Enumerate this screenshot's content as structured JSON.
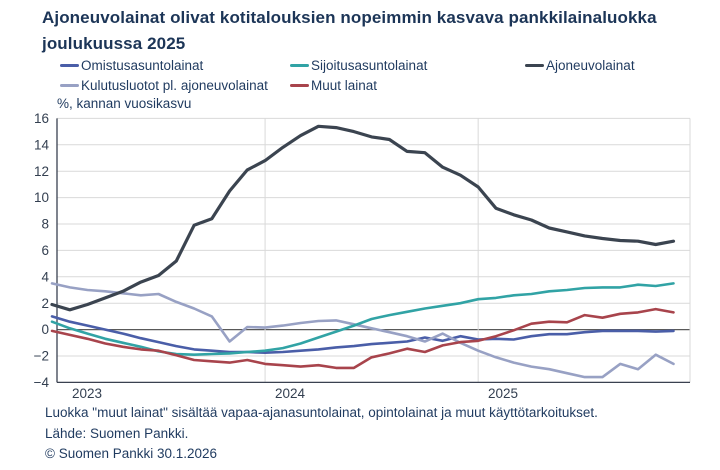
{
  "title": "Ajoneuvolainat olivat kotitalouksien nopeimmin kasvava pankkilainaluokka joulukuussa 2025",
  "footer": {
    "note": "Luokka \"muut lainat\" sisältää vapaa-ajanasuntolainat, opintolainat ja muut käyttötarkoitukset.",
    "source": "Lähde: Suomen Pankki.",
    "copyright": "© Suomen Pankki 30.1.2026"
  },
  "colors": {
    "text_navy": "#1f3a5f",
    "gridline": "#d9d9d9",
    "zero_line": "#595959",
    "axis_line": "#3a4150",
    "tick_label": "#333f50",
    "background": "#ffffff"
  },
  "chart_data": {
    "type": "line",
    "title": "Ajoneuvolainat olivat kotitalouksien nopeimmin kasvava pankkilainaluokka joulukuussa 2025",
    "ylabel": "%, kannan vuosikasvu",
    "xlabel": "",
    "ylim": [
      -4,
      16
    ],
    "y_tick_step": 2,
    "grid": true,
    "legend_position": "top",
    "x_ticks": [
      "2023",
      "2024",
      "2025"
    ],
    "x": [
      "2023-01",
      "2023-02",
      "2023-03",
      "2023-04",
      "2023-05",
      "2023-06",
      "2023-07",
      "2023-08",
      "2023-09",
      "2023-10",
      "2023-11",
      "2023-12",
      "2024-01",
      "2024-02",
      "2024-03",
      "2024-04",
      "2024-05",
      "2024-06",
      "2024-07",
      "2024-08",
      "2024-09",
      "2024-10",
      "2024-11",
      "2024-12",
      "2025-01",
      "2025-02",
      "2025-03",
      "2025-04",
      "2025-05",
      "2025-06",
      "2025-07",
      "2025-08",
      "2025-09",
      "2025-10",
      "2025-11",
      "2025-12"
    ],
    "series": [
      {
        "name": "Omistusasuntolainat",
        "color": "#4a5ea8",
        "values": [
          1.0,
          0.6,
          0.3,
          0.0,
          -0.3,
          -0.65,
          -0.95,
          -1.25,
          -1.5,
          -1.6,
          -1.7,
          -1.7,
          -1.75,
          -1.7,
          -1.6,
          -1.5,
          -1.35,
          -1.25,
          -1.1,
          -1.0,
          -0.9,
          -0.6,
          -0.85,
          -0.5,
          -0.75,
          -0.7,
          -0.75,
          -0.5,
          -0.35,
          -0.35,
          -0.2,
          -0.1,
          -0.1,
          -0.1,
          -0.15,
          -0.1
        ]
      },
      {
        "name": "Kulutusluotot pl. ajoneuvolainat",
        "color": "#98a1c4",
        "values": [
          3.5,
          3.2,
          3.0,
          2.9,
          2.75,
          2.6,
          2.7,
          2.1,
          1.6,
          1.0,
          -0.9,
          0.2,
          0.15,
          0.3,
          0.5,
          0.65,
          0.7,
          0.4,
          0.1,
          -0.2,
          -0.5,
          -0.9,
          -0.3,
          -1.0,
          -1.6,
          -2.1,
          -2.5,
          -2.8,
          -3.0,
          -3.3,
          -3.6,
          -3.6,
          -2.6,
          -3.0,
          -1.9,
          -2.6
        ]
      },
      {
        "name": "Sijoitusasuntolainat",
        "color": "#31a3a5",
        "values": [
          0.6,
          0.1,
          -0.3,
          -0.7,
          -1.0,
          -1.3,
          -1.65,
          -1.85,
          -1.9,
          -1.85,
          -1.8,
          -1.7,
          -1.6,
          -1.4,
          -1.05,
          -0.6,
          -0.15,
          0.3,
          0.8,
          1.1,
          1.35,
          1.6,
          1.8,
          2.0,
          2.3,
          2.4,
          2.6,
          2.7,
          2.9,
          3.0,
          3.15,
          3.2,
          3.2,
          3.4,
          3.3,
          3.5
        ]
      },
      {
        "name": "Muut lainat",
        "color": "#a8444c",
        "values": [
          -0.1,
          -0.4,
          -0.7,
          -1.05,
          -1.3,
          -1.5,
          -1.6,
          -1.95,
          -2.3,
          -2.4,
          -2.5,
          -2.3,
          -2.6,
          -2.7,
          -2.8,
          -2.7,
          -2.9,
          -2.9,
          -2.1,
          -1.8,
          -1.45,
          -1.7,
          -1.2,
          -0.95,
          -0.85,
          -0.5,
          -0.05,
          0.45,
          0.6,
          0.55,
          1.1,
          0.9,
          1.2,
          1.3,
          1.55,
          1.3
        ]
      },
      {
        "name": "Ajoneuvolainat",
        "color": "#3b4450",
        "values": [
          1.9,
          1.5,
          1.9,
          2.4,
          2.9,
          3.6,
          4.1,
          5.2,
          7.9,
          8.4,
          10.5,
          12.1,
          12.8,
          13.8,
          14.7,
          15.4,
          15.3,
          15.0,
          14.6,
          14.4,
          13.5,
          13.4,
          12.3,
          11.7,
          10.8,
          9.2,
          8.7,
          8.3,
          7.7,
          7.4,
          7.1,
          6.9,
          6.75,
          6.7,
          6.45,
          6.7
        ]
      }
    ]
  }
}
